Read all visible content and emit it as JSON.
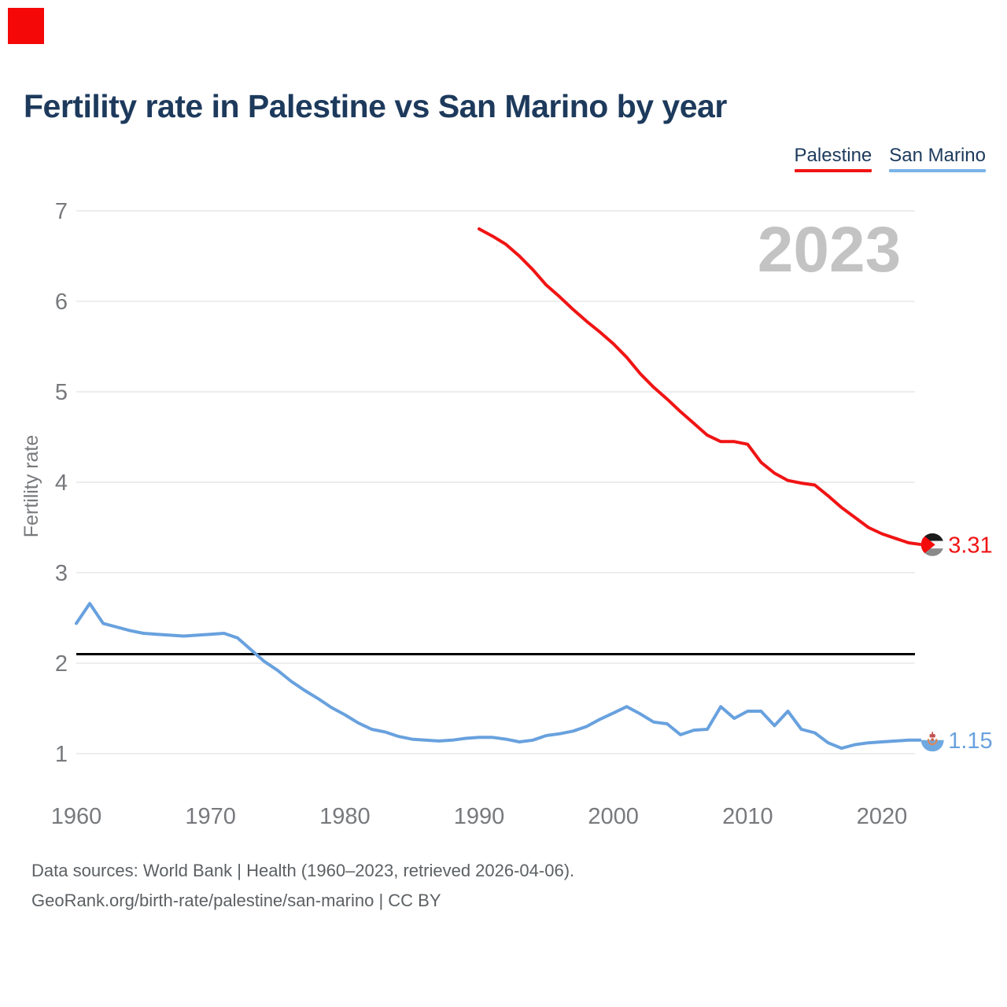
{
  "marker": {
    "color": "#f40808"
  },
  "title": "Fertility rate in Palestine vs San Marino by year",
  "legend": [
    {
      "label": "Palestine",
      "color": "#f01414"
    },
    {
      "label": "San Marino",
      "color": "#79b3e8"
    }
  ],
  "watermark": "2023",
  "icons": {
    "palestine_flag": "palestine-flag-icon",
    "san_marino_flag": "san-marino-flag-icon"
  },
  "footer": {
    "line1": "Data sources: World Bank | Health (1960–2023, retrieved 2026-04-06).",
    "line2": "GeoRank.org/birth-rate/palestine/san-marino | CC BY"
  },
  "chart_data": {
    "type": "line",
    "title": "Fertility rate in Palestine vs San Marino by year",
    "xlabel": "",
    "ylabel": "Fertility rate",
    "ylim": [
      1,
      7
    ],
    "y_ticks": [
      7,
      6,
      5,
      4,
      3,
      2,
      1
    ],
    "x_ticks": [
      1960,
      1970,
      1980,
      1990,
      2000,
      2010,
      2020
    ],
    "grid": "horizontal",
    "legend_position": "top-right",
    "watermark_year": "2023",
    "reference_line": {
      "value": 2.1,
      "color": "#000000"
    },
    "series": [
      {
        "name": "Palestine",
        "color": "#f01414",
        "start_year": 1990,
        "end_year": 2023,
        "end_label": "3.31",
        "values": [
          6.8,
          6.72,
          6.63,
          6.5,
          6.35,
          6.18,
          6.05,
          5.91,
          5.78,
          5.66,
          5.53,
          5.38,
          5.2,
          5.05,
          4.92,
          4.78,
          4.65,
          4.52,
          4.45,
          4.45,
          4.42,
          4.22,
          4.1,
          4.02,
          3.99,
          3.97,
          3.85,
          3.72,
          3.61,
          3.5,
          3.43,
          3.38,
          3.33,
          3.31
        ]
      },
      {
        "name": "San Marino",
        "color": "#68a1de",
        "start_year": 1960,
        "end_year": 2023,
        "end_label": "1.15",
        "values": [
          2.44,
          2.66,
          2.44,
          2.4,
          2.36,
          2.33,
          2.32,
          2.31,
          2.3,
          2.31,
          2.32,
          2.33,
          2.28,
          2.15,
          2.02,
          1.92,
          1.8,
          1.7,
          1.61,
          1.51,
          1.43,
          1.34,
          1.27,
          1.24,
          1.19,
          1.16,
          1.15,
          1.14,
          1.15,
          1.17,
          1.18,
          1.18,
          1.16,
          1.13,
          1.15,
          1.2,
          1.22,
          1.25,
          1.3,
          1.38,
          1.45,
          1.52,
          1.44,
          1.35,
          1.33,
          1.21,
          1.26,
          1.27,
          1.52,
          1.39,
          1.47,
          1.47,
          1.31,
          1.47,
          1.27,
          1.23,
          1.12,
          1.06,
          1.1,
          1.12,
          1.13,
          1.14,
          1.15,
          1.15
        ]
      }
    ]
  }
}
